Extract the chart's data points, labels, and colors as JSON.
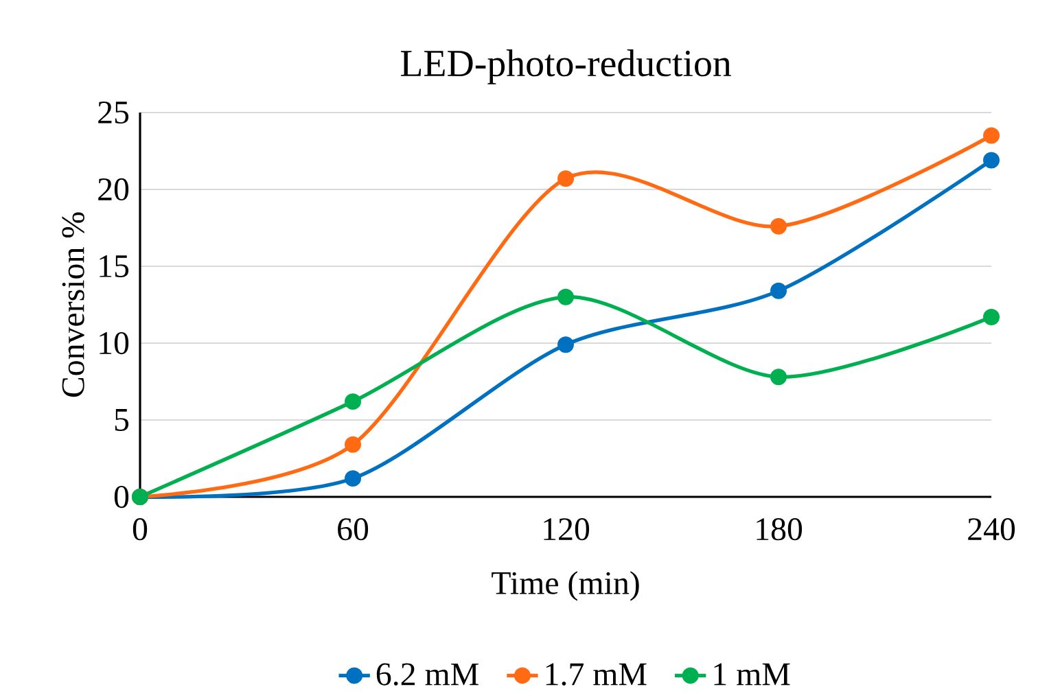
{
  "chart_data": {
    "type": "line",
    "title": "LED-photo-reduction",
    "xlabel": "Time (min)",
    "ylabel": "Conversion %",
    "x": [
      0,
      60,
      120,
      180,
      240
    ],
    "series": [
      {
        "name": "6.2 mM",
        "color": "#0070c0",
        "values": [
          0,
          1.2,
          9.9,
          13.4,
          21.9
        ]
      },
      {
        "name": "1.7 mM",
        "color": "#ff6a13",
        "values": [
          0,
          3.4,
          20.7,
          17.6,
          23.5
        ]
      },
      {
        "name": "1 mM",
        "color": "#00b050",
        "values": [
          0,
          6.2,
          13.0,
          7.8,
          11.7
        ]
      }
    ],
    "xlim": [
      0,
      240
    ],
    "xticks": [
      0,
      60,
      120,
      180,
      240
    ],
    "ylim": [
      0,
      25
    ],
    "yticks": [
      0,
      5,
      10,
      15,
      20,
      25
    ],
    "grid": "y",
    "legend": "bottom",
    "marker": "circle",
    "line_style": "solid"
  }
}
